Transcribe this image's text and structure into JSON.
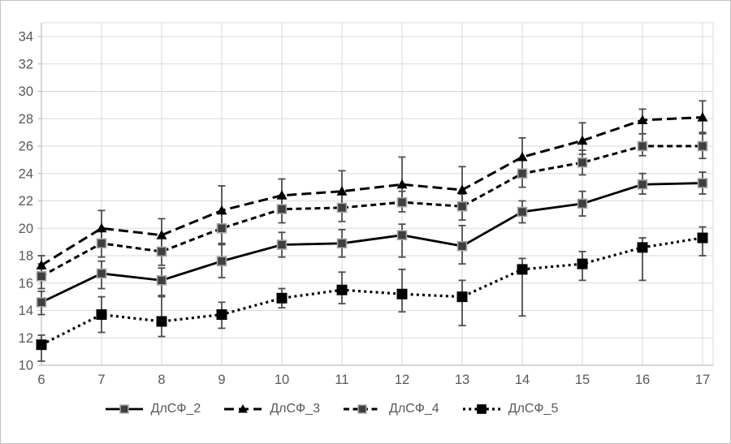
{
  "figure": {
    "background": "#ffffff",
    "border_color": "#c3c3c3"
  },
  "chart_data": {
    "type": "line",
    "title": "",
    "xlabel": "",
    "ylabel": "",
    "x": [
      6,
      7,
      8,
      9,
      10,
      11,
      12,
      13,
      14,
      15,
      16,
      17
    ],
    "ylim": [
      10,
      35
    ],
    "yticks": [
      10,
      12,
      14,
      16,
      18,
      20,
      22,
      24,
      26,
      28,
      30,
      32,
      34
    ],
    "grid": true,
    "error_bars": true,
    "legend_position": "bottom",
    "colors": {
      "line": "#000000",
      "grid": "#d9d9d9",
      "axis": "#bfbfbf",
      "error_bar": "#4d4d4d",
      "tick_label": "#595959",
      "marker_gray_fill": "#3f3f3f",
      "marker_gray_edge": "#a6a6a6",
      "marker_black": "#000000"
    },
    "series": [
      {
        "name": "ДлСФ_2",
        "line_style": "solid",
        "marker": "square-gray",
        "values": [
          14.6,
          16.7,
          16.2,
          17.6,
          18.8,
          18.9,
          19.5,
          18.7,
          21.2,
          21.8,
          23.2,
          23.3
        ],
        "err_up": [
          0.8,
          0.9,
          0.9,
          1.2,
          0.9,
          1.0,
          0.8,
          1.5,
          0.8,
          0.9,
          0.8,
          0.8
        ],
        "err_down": [
          0.9,
          1.1,
          1.1,
          1.2,
          0.9,
          1.0,
          1.6,
          1.3,
          0.8,
          0.9,
          0.7,
          0.8
        ]
      },
      {
        "name": "ДлСФ_3",
        "line_style": "long-dash",
        "marker": "triangle-black",
        "values": [
          17.3,
          20.0,
          19.5,
          21.3,
          22.4,
          22.7,
          23.2,
          22.8,
          25.2,
          26.4,
          27.9,
          28.1
        ],
        "err_up": [
          0.7,
          1.3,
          1.2,
          1.8,
          1.2,
          1.5,
          2.0,
          1.7,
          1.4,
          1.3,
          0.8,
          1.2
        ],
        "err_down": [
          0.8,
          1.1,
          1.0,
          1.2,
          1.0,
          1.0,
          1.3,
          1.2,
          1.0,
          1.0,
          1.0,
          1.1
        ]
      },
      {
        "name": "ДлСФ_4",
        "line_style": "dash",
        "marker": "square-gray",
        "values": [
          16.5,
          18.9,
          18.3,
          20.0,
          21.4,
          21.5,
          21.9,
          21.6,
          24.0,
          24.8,
          26.0,
          26.0
        ],
        "err_up": [
          0.9,
          1.0,
          1.0,
          1.1,
          1.0,
          1.0,
          0.8,
          0.9,
          1.0,
          0.9,
          0.9,
          0.9
        ],
        "err_down": [
          0.9,
          1.0,
          1.0,
          1.1,
          1.0,
          1.0,
          0.7,
          1.0,
          1.0,
          0.9,
          0.7,
          0.9
        ]
      },
      {
        "name": "ДлСФ_5",
        "line_style": "dot",
        "marker": "square-black",
        "values": [
          11.5,
          13.7,
          13.2,
          13.7,
          14.9,
          15.5,
          15.2,
          15.0,
          17.0,
          17.4,
          18.6,
          19.3
        ],
        "err_up": [
          0.7,
          1.3,
          1.8,
          0.9,
          0.7,
          1.3,
          1.8,
          1.2,
          0.8,
          0.9,
          0.7,
          0.8
        ],
        "err_down": [
          1.2,
          1.3,
          1.1,
          1.0,
          0.7,
          1.0,
          1.3,
          2.1,
          3.4,
          1.2,
          2.4,
          1.3
        ]
      }
    ]
  }
}
